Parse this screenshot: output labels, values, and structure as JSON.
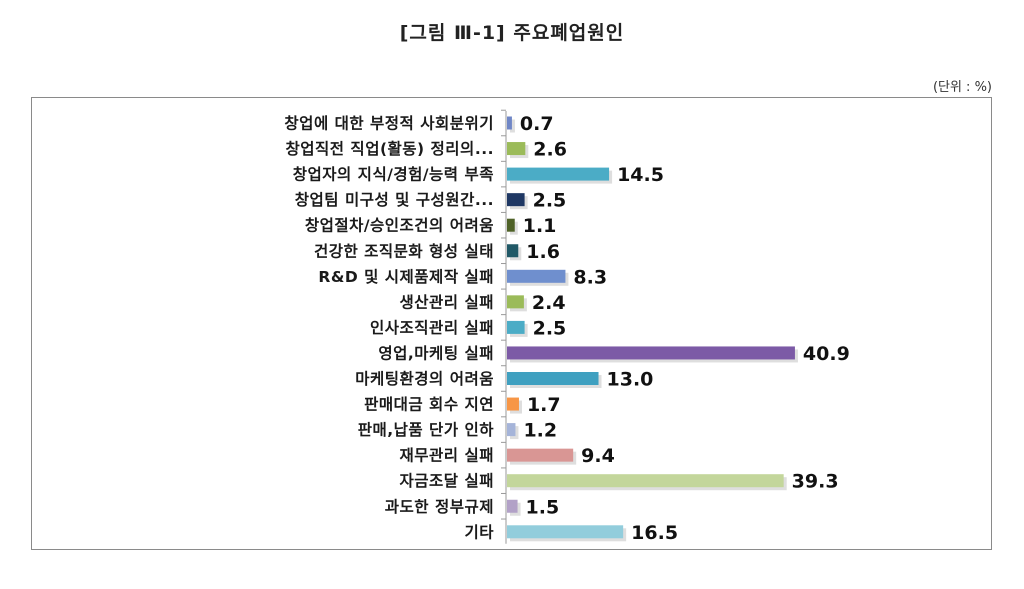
{
  "title": "[그림 Ⅲ-1] 주요폐업원인",
  "unit_label": "(단위 : %)",
  "chart_data": {
    "type": "bar",
    "orientation": "horizontal",
    "categories": [
      "창업에 대한 부정적 사회분위기",
      "창업직전 직업(활동) 정리의...",
      "창업자의 지식/경험/능력 부족",
      "창업팀 미구성 및 구성원간...",
      "창업절차/승인조건의 어려움",
      "건강한 조직문화 형성 실태",
      "R&D 및 시제품제작 실패",
      "생산관리 실패",
      "인사조직관리 실패",
      "영업,마케팅 실패",
      "마케팅환경의 어려움",
      "판매대금 회수 지연",
      "판매,납품 단가 인하",
      "재무관리 실패",
      "자금조달 실패",
      "과도한 정부규제",
      "기타"
    ],
    "values": [
      0.7,
      2.6,
      14.5,
      2.5,
      1.1,
      1.6,
      8.3,
      2.4,
      2.5,
      40.9,
      13.0,
      1.7,
      1.2,
      9.4,
      39.3,
      1.5,
      16.5
    ],
    "value_labels": [
      "0.7",
      "2.6",
      "14.5",
      "2.5",
      "1.1",
      "1.6",
      "8.3",
      "2.4",
      "2.5",
      "40.9",
      "13.0",
      "1.7",
      "1.2",
      "9.4",
      "39.3",
      "1.5",
      "16.5"
    ],
    "colors": [
      "#6f86c6",
      "#9bbb59",
      "#4bacc6",
      "#1f3864",
      "#4f6228",
      "#215967",
      "#6f8fce",
      "#9bbb59",
      "#4bacc6",
      "#7c5aa6",
      "#3fa0c0",
      "#f79646",
      "#a5b4d9",
      "#d99694",
      "#c3d69b",
      "#b2a1c7",
      "#92cddc"
    ],
    "grid": false,
    "legend": "none"
  }
}
